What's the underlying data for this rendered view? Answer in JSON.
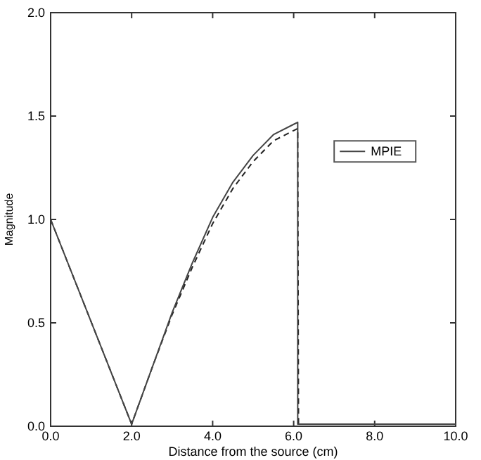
{
  "chart_data": {
    "type": "line",
    "xlabel": "Distance from the source (cm)",
    "ylabel": "Magnitude",
    "xlim": [
      0,
      10
    ],
    "ylim": [
      0,
      2
    ],
    "xticks": [
      {
        "value": 0,
        "label": "0.0"
      },
      {
        "value": 2,
        "label": "2.0"
      },
      {
        "value": 4,
        "label": "4.0"
      },
      {
        "value": 6,
        "label": "6.0"
      },
      {
        "value": 8,
        "label": "8.0"
      },
      {
        "value": 10,
        "label": "10.0"
      }
    ],
    "yticks": [
      {
        "value": 0,
        "label": "0.0"
      },
      {
        "value": 0.5,
        "label": "0.5"
      },
      {
        "value": 1,
        "label": "1.0"
      },
      {
        "value": 1.5,
        "label": "1.5"
      },
      {
        "value": 2,
        "label": "2.0"
      }
    ],
    "grid": false,
    "legend": "right",
    "series": [
      {
        "color": "#222222",
        "line_style": "dashed",
        "x": [
          0,
          2,
          2.5,
          3,
          3.5,
          4,
          4.5,
          5,
          5.5,
          6,
          6.1,
          6.12,
          10
        ],
        "values": [
          1,
          0.01,
          0.28,
          0.54,
          0.77,
          0.98,
          1.15,
          1.28,
          1.38,
          1.43,
          1.44,
          0.01,
          0.01
        ]
      },
      {
        "name": "MPIE",
        "color": "#444444",
        "line_style": "solid",
        "x": [
          0,
          2,
          2.5,
          3,
          3.5,
          4,
          4.5,
          5,
          5.5,
          6,
          6.1,
          6.1,
          10
        ],
        "values": [
          1,
          0.01,
          0.28,
          0.55,
          0.79,
          1.01,
          1.18,
          1.31,
          1.41,
          1.46,
          1.47,
          0.01,
          0.01
        ]
      }
    ]
  }
}
